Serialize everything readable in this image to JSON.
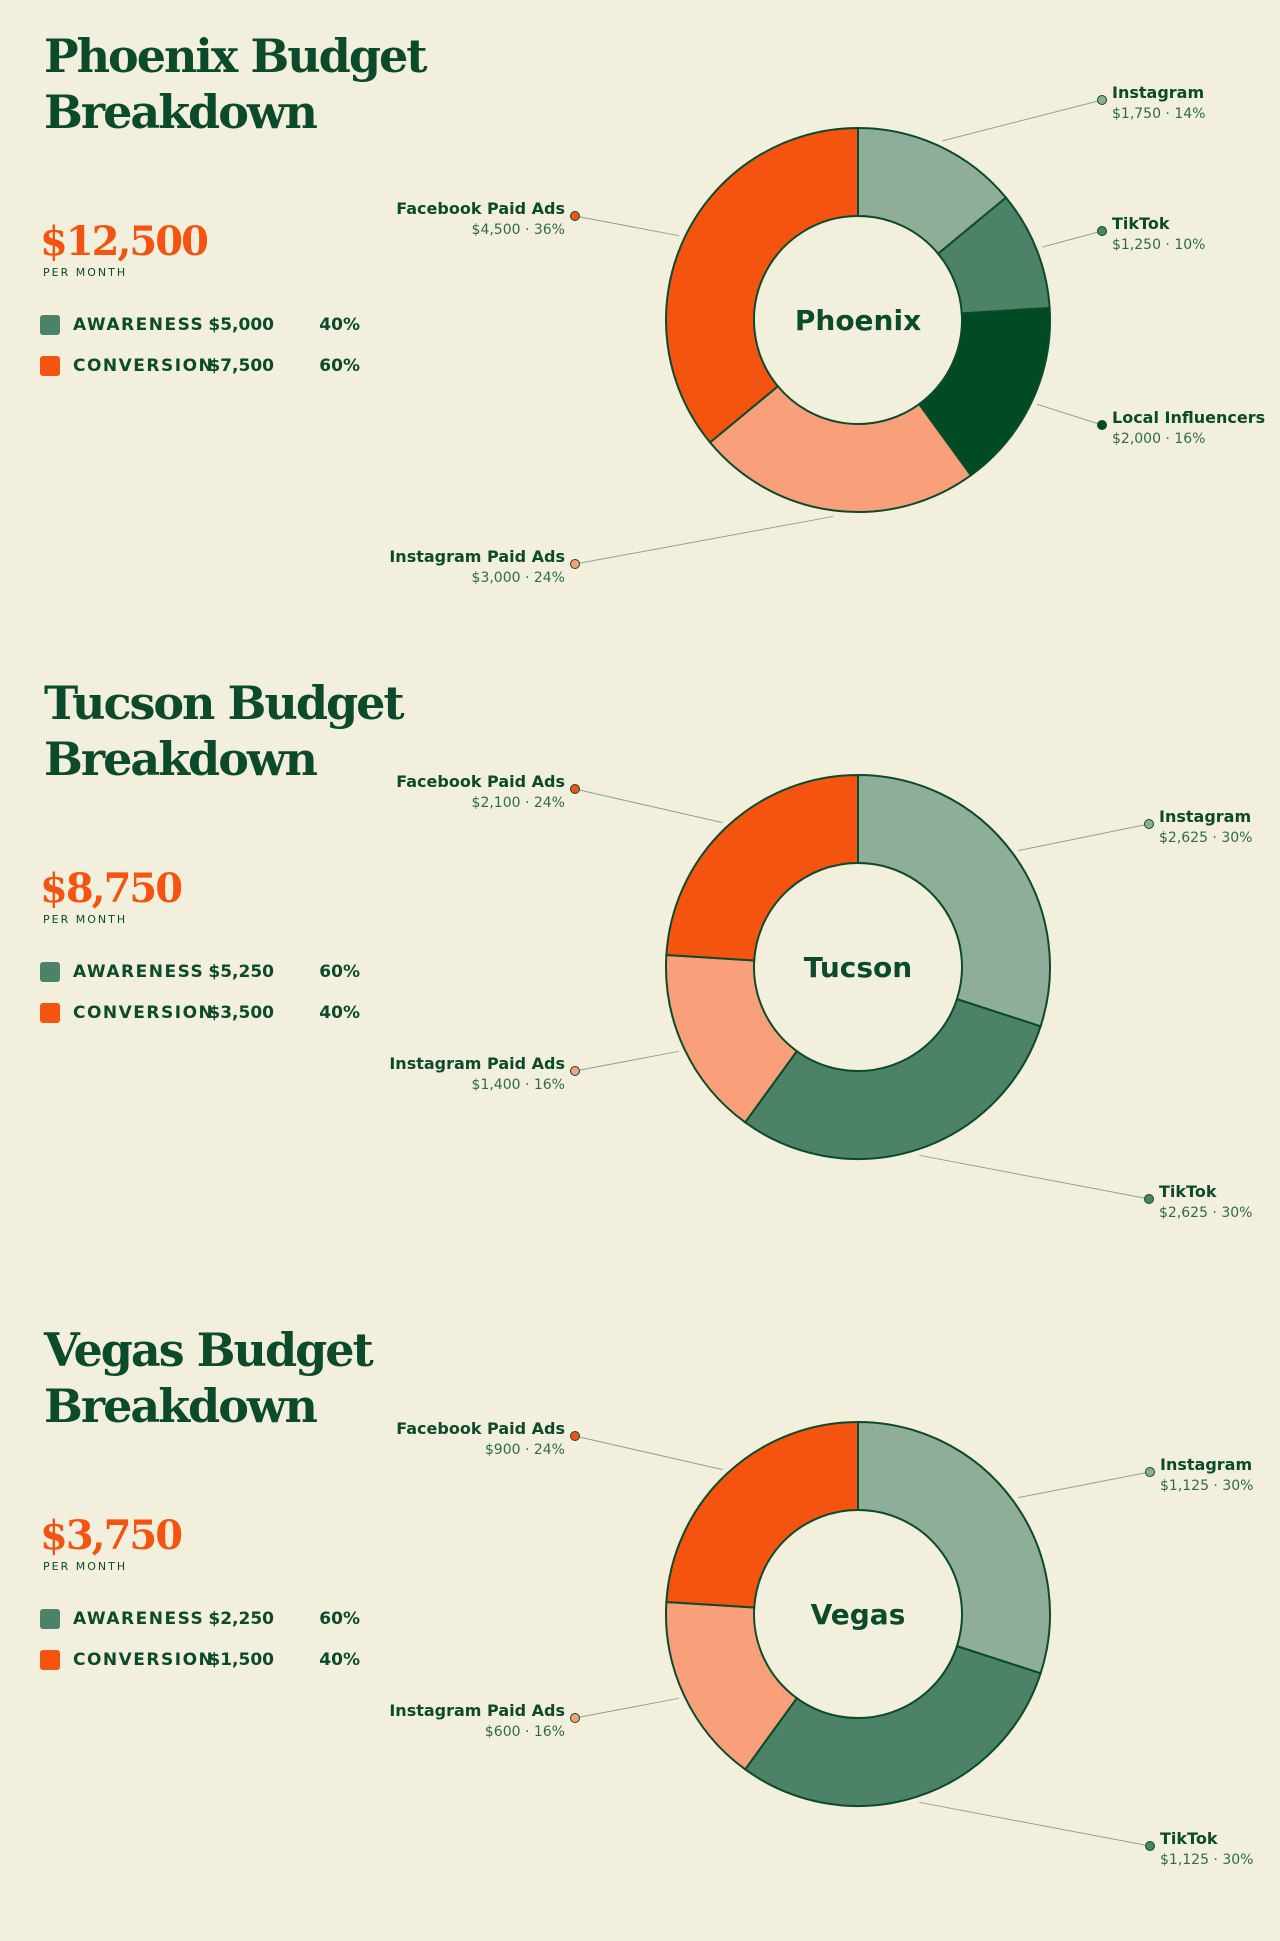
{
  "colors": {
    "background": "#f2f0dc",
    "dark_green": "#0b4a2b",
    "orange": "#f4540f",
    "instagram": "#8eae9a",
    "tiktok": "#4b8268",
    "local_influencers": "#004a24",
    "facebook_paid_ads": "#f4540f",
    "instagram_paid_ads": "#f9a07b"
  },
  "sections": [
    {
      "title": "Phoenix Budget Breakdown",
      "total": "$12,500",
      "per_label": "PER MONTH",
      "legend": [
        {
          "label": "AWARENESS",
          "amount": "$5,000",
          "pct": "40%",
          "color": "#4b8268"
        },
        {
          "label": "CONVERSION",
          "amount": "$7,500",
          "pct": "60%",
          "color": "#f4540f"
        }
      ]
    },
    {
      "title": "Tucson Budget Breakdown",
      "total": "$8,750",
      "per_label": "PER MONTH",
      "legend": [
        {
          "label": "AWARENESS",
          "amount": "$5,250",
          "pct": "60%",
          "color": "#4b8268"
        },
        {
          "label": "CONVERSION",
          "amount": "$3,500",
          "pct": "40%",
          "color": "#f4540f"
        }
      ]
    },
    {
      "title": "Vegas Budget Breakdown",
      "total": "$3,750",
      "per_label": "PER MONTH",
      "legend": [
        {
          "label": "AWARENESS",
          "amount": "$2,250",
          "pct": "60%",
          "color": "#4b8268"
        },
        {
          "label": "CONVERSION",
          "amount": "$1,500",
          "pct": "40%",
          "color": "#f4540f"
        }
      ]
    }
  ],
  "chart_data": [
    {
      "type": "pie",
      "center_label": "Phoenix",
      "slices": [
        {
          "name": "Instagram",
          "value": 1750,
          "detail": "$1,750 · 14%",
          "color": "#8eae9a"
        },
        {
          "name": "TikTok",
          "value": 1250,
          "detail": "$1,250 · 10%",
          "color": "#4b8268"
        },
        {
          "name": "Local Influencers",
          "value": 2000,
          "detail": "$2,000 · 16%",
          "color": "#004a24"
        },
        {
          "name": "Instagram Paid Ads",
          "value": 3000,
          "detail": "$3,000 · 24%",
          "color": "#f9a07b"
        },
        {
          "name": "Facebook Paid Ads",
          "value": 4500,
          "detail": "$4,500 · 36%",
          "color": "#f4540f"
        }
      ]
    },
    {
      "type": "pie",
      "center_label": "Tucson",
      "slices": [
        {
          "name": "Instagram",
          "value": 2625,
          "detail": "$2,625 · 30%",
          "color": "#8eae9a"
        },
        {
          "name": "TikTok",
          "value": 2625,
          "detail": "$2,625 · 30%",
          "color": "#4b8268"
        },
        {
          "name": "Instagram Paid Ads",
          "value": 1400,
          "detail": "$1,400 · 16%",
          "color": "#f9a07b"
        },
        {
          "name": "Facebook Paid Ads",
          "value": 2100,
          "detail": "$2,100 · 24%",
          "color": "#f4540f"
        }
      ]
    },
    {
      "type": "pie",
      "center_label": "Vegas",
      "slices": [
        {
          "name": "Instagram",
          "value": 1125,
          "detail": "$1,125 · 30%",
          "color": "#8eae9a"
        },
        {
          "name": "TikTok",
          "value": 1125,
          "detail": "$1,125 · 30%",
          "color": "#4b8268"
        },
        {
          "name": "Instagram Paid Ads",
          "value": 600,
          "detail": "$600 · 16%",
          "color": "#f9a07b"
        },
        {
          "name": "Facebook Paid Ads",
          "value": 900,
          "detail": "$900 · 24%",
          "color": "#f4540f"
        }
      ]
    }
  ]
}
